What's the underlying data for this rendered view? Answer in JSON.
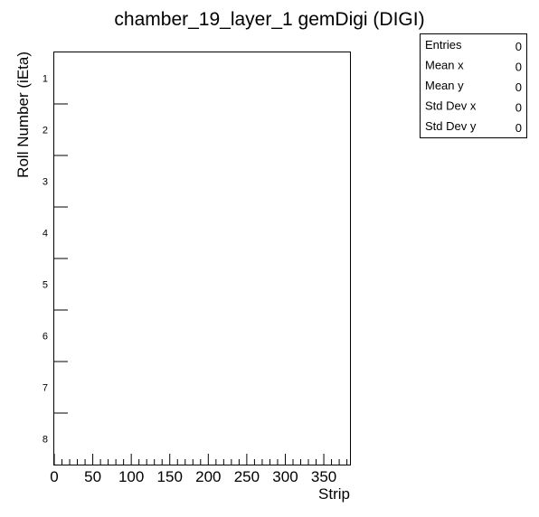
{
  "chart_data": {
    "type": "heatmap",
    "title": "chamber_19_layer_1 gemDigi (DIGI)",
    "xlabel": "Strip",
    "ylabel": "Roll Number (iEta)",
    "xlim": [
      0,
      384
    ],
    "ylim": [
      0.5,
      8.5
    ],
    "x_tick_labels": [
      "0",
      "50",
      "100",
      "150",
      "200",
      "250",
      "300",
      "350"
    ],
    "y_tick_labels": [
      "1",
      "2",
      "3",
      "4",
      "5",
      "6",
      "7",
      "8"
    ],
    "values": [],
    "stats": [
      {
        "label": "Entries",
        "value": "0"
      },
      {
        "label": "Mean x",
        "value": "0"
      },
      {
        "label": "Mean y",
        "value": "0"
      },
      {
        "label": "Std Dev x",
        "value": "0"
      },
      {
        "label": "Std Dev y",
        "value": "0"
      }
    ]
  }
}
